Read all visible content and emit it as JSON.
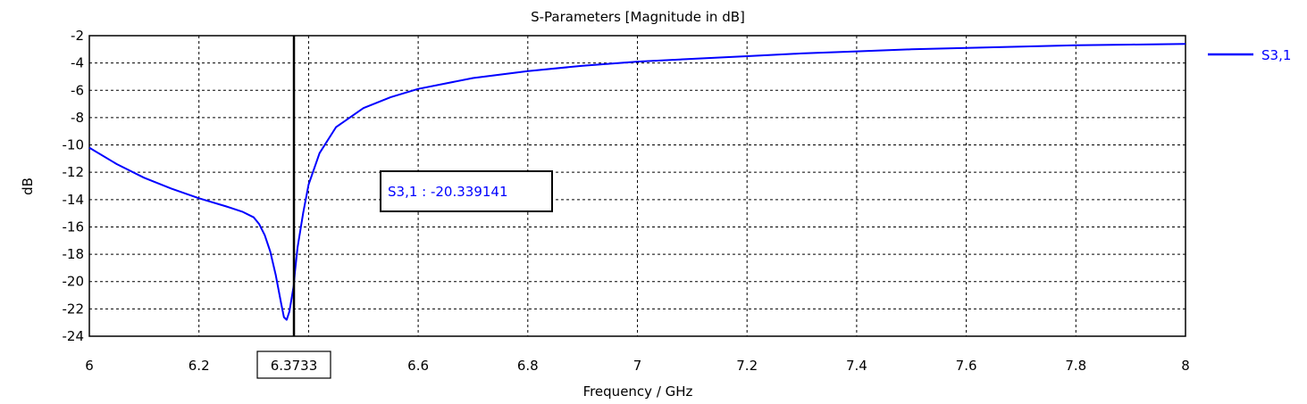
{
  "chart_data": {
    "type": "line",
    "title": "S-Parameters [Magnitude in dB]",
    "xlabel": "Frequency / GHz",
    "ylabel": "dB",
    "xlim": [
      6,
      8
    ],
    "ylim": [
      -24,
      -2
    ],
    "x_ticks": [
      "6",
      "6.2",
      "6.4",
      "6.6",
      "6.8",
      "7",
      "7.2",
      "7.4",
      "7.6",
      "7.8",
      "8"
    ],
    "y_ticks": [
      "-2",
      "-4",
      "-6",
      "-8",
      "-10",
      "-12",
      "-14",
      "-16",
      "-18",
      "-20",
      "-22",
      "-24"
    ],
    "grid": true,
    "legend_position": "right",
    "series": [
      {
        "name": "S3,1",
        "color": "#0000ff",
        "x": [
          6.0,
          6.05,
          6.1,
          6.15,
          6.2,
          6.25,
          6.28,
          6.3,
          6.31,
          6.32,
          6.33,
          6.34,
          6.35,
          6.355,
          6.36,
          6.365,
          6.37,
          6.373,
          6.375,
          6.38,
          6.39,
          6.4,
          6.42,
          6.45,
          6.5,
          6.55,
          6.6,
          6.7,
          6.8,
          6.9,
          7.0,
          7.1,
          7.2,
          7.3,
          7.4,
          7.5,
          7.6,
          7.7,
          7.8,
          7.9,
          8.0
        ],
        "y": [
          -10.2,
          -11.4,
          -12.4,
          -13.2,
          -13.9,
          -14.5,
          -14.9,
          -15.3,
          -15.8,
          -16.6,
          -17.8,
          -19.5,
          -21.6,
          -22.6,
          -22.8,
          -22.2,
          -21.0,
          -20.3,
          -19.3,
          -17.5,
          -15.0,
          -12.9,
          -10.6,
          -8.7,
          -7.3,
          -6.5,
          -5.9,
          -5.1,
          -4.6,
          -4.2,
          -3.9,
          -3.7,
          -3.5,
          -3.3,
          -3.15,
          -3.0,
          -2.9,
          -2.8,
          -2.7,
          -2.65,
          -2.6
        ]
      }
    ],
    "marker": {
      "x": 6.3733,
      "x_label": "6.3733",
      "readout": "S3,1 : -20.339141"
    }
  }
}
